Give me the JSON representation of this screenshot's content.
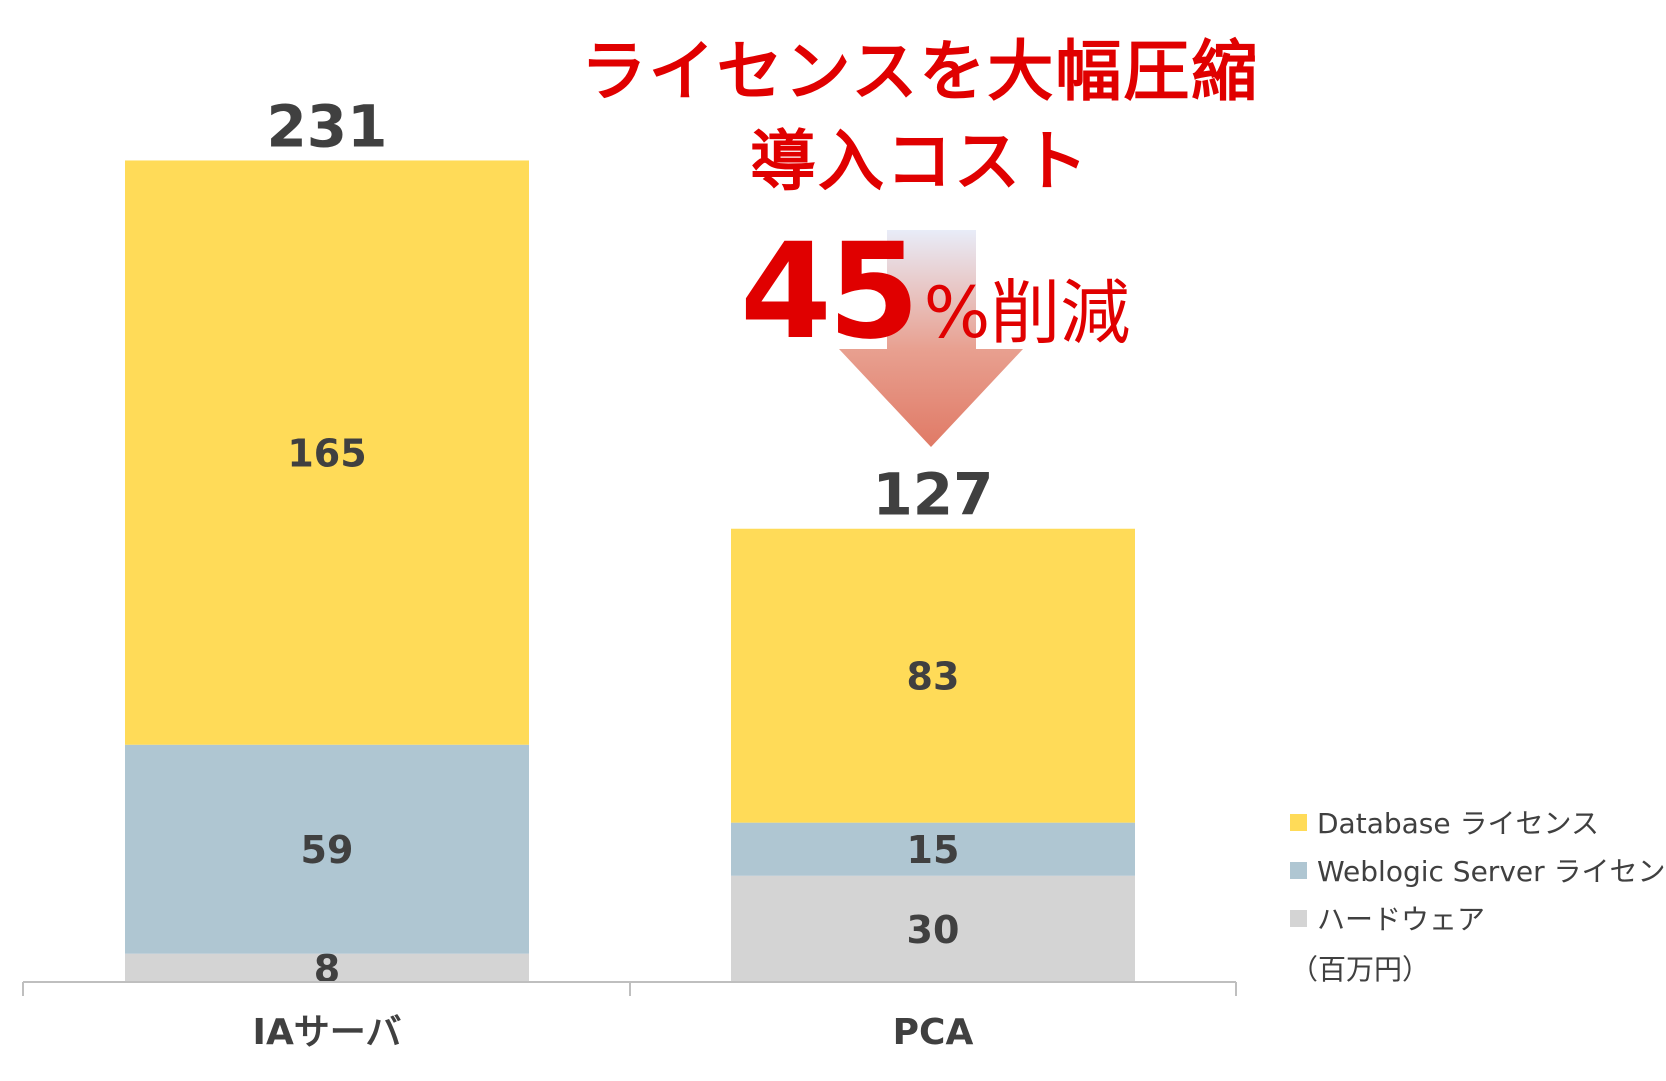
{
  "headline": {
    "line1": "ライセンスを大幅圧縮",
    "line2": "導入コスト",
    "reduction_value": "45",
    "reduction_suffix": "%削減"
  },
  "legend": {
    "items": [
      {
        "label": "Database ライセンス",
        "color": "#ffdb58"
      },
      {
        "label": "Weblogic Server ライセンス",
        "color": "#afc6d2"
      },
      {
        "label": "ハードウェア",
        "color": "#d4d4d4"
      }
    ],
    "unit": "（百万円）"
  },
  "chart_data": {
    "type": "bar",
    "stacked": true,
    "categories": [
      "IAサーバ",
      "PCA"
    ],
    "series": [
      {
        "name": "ハードウェア",
        "values": [
          8,
          30
        ],
        "color": "#d4d4d4"
      },
      {
        "name": "Weblogic Server ライセンス",
        "values": [
          59,
          15
        ],
        "color": "#afc6d2"
      },
      {
        "name": "Database ライセンス",
        "values": [
          165,
          83
        ],
        "color": "#ffdb58"
      }
    ],
    "totals": [
      231,
      127
    ],
    "ylim": [
      0,
      231
    ],
    "grid": false,
    "legend_position": "bottom-right",
    "arrow_color": "#e07a66"
  }
}
